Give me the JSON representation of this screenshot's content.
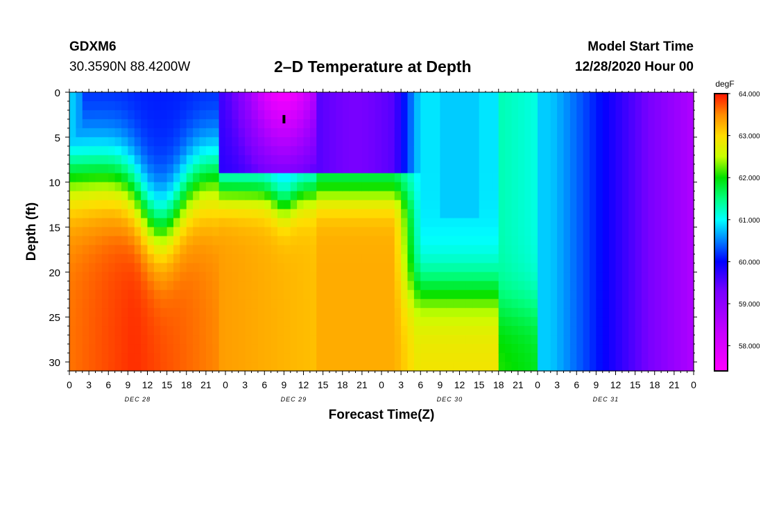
{
  "header": {
    "station": "GDXM6",
    "coordinates": "30.3590N 88.4200W",
    "title": "2–D Temperature at Depth",
    "model_start_label": "Model Start Time",
    "model_start_value": "12/28/2020 Hour 00"
  },
  "chart_data": {
    "type": "heatmap",
    "title": "2–D Temperature at Depth",
    "xlabel": "Forecast Time(Z)",
    "ylabel": "Depth (ft)",
    "x_range_hours": [
      0,
      96
    ],
    "y_range_ft": [
      0,
      31
    ],
    "y_inverted": true,
    "x_tick_labels": [
      "0",
      "3",
      "6",
      "9",
      "12",
      "15",
      "18",
      "21",
      "0",
      "3",
      "6",
      "9",
      "12",
      "15",
      "18",
      "21",
      "0",
      "3",
      "6",
      "9",
      "12",
      "15",
      "18",
      "21",
      "0",
      "3",
      "6",
      "9",
      "12",
      "15",
      "18",
      "21",
      "0"
    ],
    "day_labels": [
      "DEC 28",
      "DEC 29",
      "DEC 30",
      "DEC 31"
    ],
    "y_ticks": [
      0,
      5,
      10,
      15,
      20,
      25,
      30
    ],
    "y_tick_labels": [
      "0",
      "5",
      "10",
      "15",
      "20",
      "25",
      "30"
    ],
    "colorbar": {
      "units": "degF",
      "min": 57.4,
      "max": 64.0,
      "ticks": [
        64.0,
        63.0,
        62.0,
        61.0,
        60.0,
        59.0,
        58.0
      ],
      "tick_labels": [
        "64.000",
        "63.000",
        "62.000",
        "61.000",
        "60.000",
        "59.000",
        "58.000"
      ]
    },
    "field_notes": "Surface layer ~59.5-60.5 degF; warm bottom layer up to ~63.9 degF on Dec 28; minimum ~57.5 degF near hour 33 at 3 ft; column mixes to ~60-61 degF by Dec 30; uniform cooling to ~59 degF by end of Dec 31.",
    "marker": {
      "x_hours": 33,
      "depth_ft": 3
    }
  }
}
